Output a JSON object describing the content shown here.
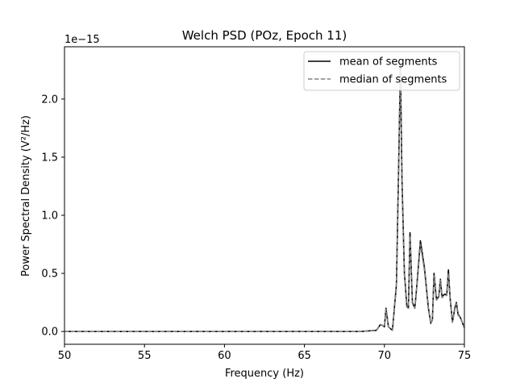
{
  "chart_data": {
    "type": "line",
    "title": "Welch PSD (POz, Epoch 11)",
    "xlabel": "Frequency (Hz)",
    "ylabel": "Power Spectral Density (V²/Hz)",
    "y_offset_text": "1e−15",
    "xlim": [
      50,
      75
    ],
    "ylim": [
      -0.11,
      2.45
    ],
    "y_scale_factor": 1e-15,
    "x_ticks": [
      50,
      55,
      60,
      65,
      70,
      75
    ],
    "x_tick_labels": [
      "50",
      "55",
      "60",
      "65",
      "70",
      "75"
    ],
    "y_ticks": [
      0.0,
      0.5,
      1.0,
      1.5,
      2.0
    ],
    "y_tick_labels": [
      "0.0",
      "0.5",
      "1.0",
      "1.5",
      "2.0"
    ],
    "legend_placement": "upper right",
    "grid": false,
    "series": [
      {
        "name": "mean of segments",
        "color": "#000000",
        "style": "solid",
        "x": [
          50,
          55,
          60,
          65,
          68.5,
          69.0,
          69.5,
          69.75,
          69.9,
          70.0,
          70.1,
          70.25,
          70.5,
          70.75,
          70.9,
          71.0,
          71.1,
          71.25,
          71.4,
          71.5,
          71.6,
          71.75,
          71.9,
          72.0,
          72.25,
          72.5,
          72.75,
          72.9,
          73.0,
          73.1,
          73.25,
          73.4,
          73.5,
          73.6,
          73.75,
          73.9,
          74.0,
          74.1,
          74.25,
          74.4,
          74.5,
          74.6,
          74.75,
          75.0
        ],
        "y": [
          0,
          0,
          0,
          0,
          0,
          0.005,
          0.01,
          0.06,
          0.05,
          0.04,
          0.2,
          0.04,
          0.01,
          0.4,
          1.5,
          2.3,
          1.3,
          0.5,
          0.22,
          0.2,
          0.85,
          0.25,
          0.2,
          0.35,
          0.78,
          0.55,
          0.2,
          0.07,
          0.1,
          0.5,
          0.28,
          0.3,
          0.45,
          0.3,
          0.32,
          0.32,
          0.53,
          0.3,
          0.08,
          0.2,
          0.25,
          0.15,
          0.12,
          0.03
        ]
      },
      {
        "name": "median of segments",
        "color": "#808080",
        "style": "dashed",
        "x": [
          50,
          55,
          60,
          65,
          68.5,
          69.0,
          69.5,
          69.75,
          69.9,
          70.0,
          70.1,
          70.25,
          70.5,
          70.75,
          70.9,
          71.0,
          71.1,
          71.25,
          71.4,
          71.5,
          71.6,
          71.75,
          71.9,
          72.0,
          72.25,
          72.5,
          72.75,
          72.9,
          73.0,
          73.1,
          73.25,
          73.4,
          73.5,
          73.6,
          73.75,
          73.9,
          74.0,
          74.1,
          74.25,
          74.4,
          74.5,
          74.6,
          74.75,
          75.0
        ],
        "y": [
          0,
          0,
          0,
          0,
          0,
          0.005,
          0.01,
          0.06,
          0.05,
          0.04,
          0.19,
          0.04,
          0.01,
          0.38,
          1.45,
          2.25,
          1.25,
          0.48,
          0.21,
          0.2,
          0.82,
          0.24,
          0.2,
          0.34,
          0.75,
          0.53,
          0.19,
          0.07,
          0.1,
          0.48,
          0.27,
          0.29,
          0.44,
          0.29,
          0.31,
          0.31,
          0.5,
          0.29,
          0.08,
          0.19,
          0.24,
          0.14,
          0.12,
          0.03
        ]
      }
    ]
  }
}
